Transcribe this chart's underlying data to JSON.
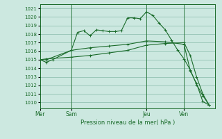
{
  "background_color": "#cce8e0",
  "grid_color": "#88bbaa",
  "line_color": "#1a6b2a",
  "title": "Pression niveau de la mer( hPa )",
  "ylim": [
    1009.3,
    1021.5
  ],
  "yticks": [
    1010,
    1011,
    1012,
    1013,
    1014,
    1015,
    1016,
    1017,
    1018,
    1019,
    1020,
    1021
  ],
  "day_labels": [
    "Mer",
    "Sam",
    "Jeu",
    "Ven"
  ],
  "day_positions": [
    0,
    5,
    17,
    23
  ],
  "vline_positions": [
    5,
    17,
    23
  ],
  "xlim": [
    0,
    28
  ],
  "series1": {
    "x": [
      0,
      1,
      2,
      5,
      6,
      7,
      8,
      9,
      10,
      11,
      12,
      13,
      14,
      15,
      16,
      17,
      18,
      19,
      20,
      21,
      22,
      23,
      24,
      25,
      26,
      27
    ],
    "y": [
      1015.0,
      1014.7,
      1015.0,
      1016.1,
      1018.2,
      1018.4,
      1017.8,
      1018.5,
      1018.4,
      1018.3,
      1018.3,
      1018.4,
      1019.9,
      1019.9,
      1019.8,
      1020.6,
      1020.2,
      1019.3,
      1018.5,
      1017.3,
      1016.1,
      1015.1,
      1013.8,
      1012.1,
      1010.8,
      1009.7
    ]
  },
  "series2": {
    "x": [
      0,
      1,
      5,
      8,
      11,
      14,
      17,
      20,
      23,
      24,
      25,
      26,
      27
    ],
    "y": [
      1015.0,
      1015.0,
      1016.1,
      1016.4,
      1016.6,
      1016.8,
      1017.2,
      1017.1,
      1016.8,
      1013.7,
      1012.2,
      1010.1,
      1009.7
    ]
  },
  "series3": {
    "x": [
      0,
      1,
      5,
      8,
      11,
      14,
      17,
      20,
      23,
      24,
      25,
      26,
      27
    ],
    "y": [
      1015.0,
      1015.1,
      1015.3,
      1015.5,
      1015.8,
      1016.1,
      1016.7,
      1016.9,
      1017.0,
      1015.5,
      1013.0,
      1011.0,
      1009.7
    ]
  }
}
